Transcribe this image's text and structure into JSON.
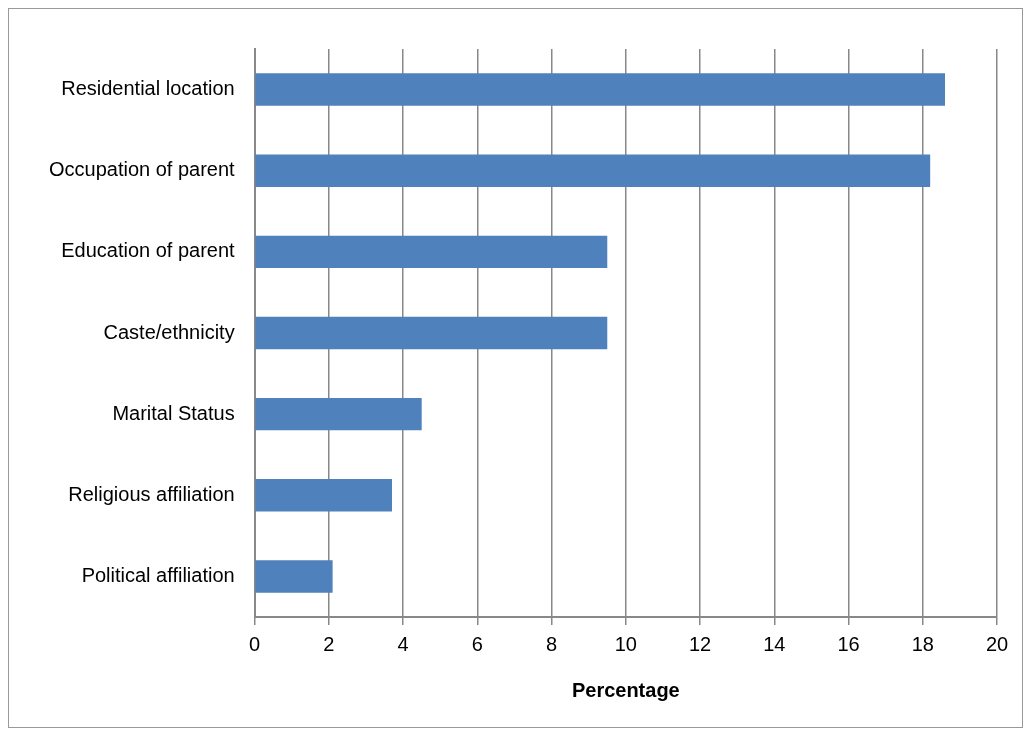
{
  "chart_data": {
    "type": "bar",
    "orientation": "horizontal",
    "xlabel": "Percentage",
    "categories": [
      "Residential location",
      "Occupation of parent",
      "Education of parent",
      "Caste/ethnicity",
      "Marital Status",
      "Religious affiliation",
      "Political affiliation"
    ],
    "values": [
      18.6,
      18.2,
      9.5,
      9.5,
      4.5,
      3.7,
      2.1
    ],
    "color": "#4f81bd",
    "xlim": [
      0,
      20
    ],
    "xticks": [
      0,
      2,
      4,
      6,
      8,
      10,
      12,
      14,
      16,
      18,
      20
    ],
    "grid": "x",
    "legend": false
  }
}
